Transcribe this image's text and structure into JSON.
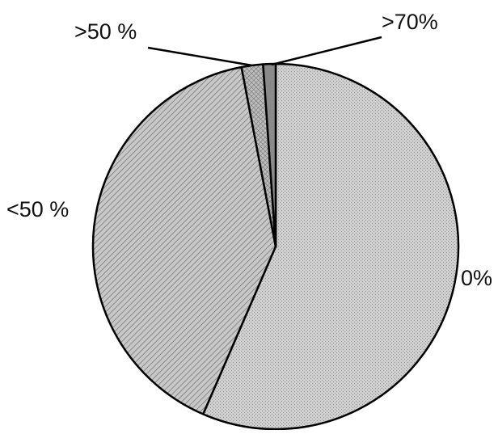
{
  "chart_data": {
    "type": "pie",
    "title": "",
    "start_angle_deg": 0,
    "direction": "clockwise",
    "slices": [
      {
        "label": "0%",
        "value": 56.5,
        "pattern": "dots",
        "color": "#c6c6c6"
      },
      {
        "label": "<50 %",
        "value": 40.5,
        "pattern": "hatch",
        "color": "#b8b8b8"
      },
      {
        "label": ">50 %",
        "value": 1.9,
        "pattern": "crosshatch",
        "color": "#a9a9a9"
      },
      {
        "label": ">70%",
        "value": 1.1,
        "pattern": "solid",
        "color": "#8a8a8a"
      }
    ]
  }
}
